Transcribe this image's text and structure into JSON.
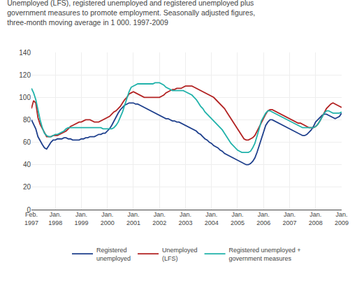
{
  "chart_data": {
    "type": "line",
    "title": "Unemployed (LFS), registered unemployed and registered unemployed plus\ngovernment measures to promote employment. Seasonally adjusted figures,\nthree-month moving average in 1 000. 1997-2009",
    "categories": [
      "Feb.\n1997",
      null,
      null,
      null,
      null,
      null,
      null,
      null,
      null,
      null,
      null,
      "Jan.\n1998",
      null,
      null,
      null,
      null,
      null,
      null,
      null,
      null,
      null,
      null,
      null,
      "Jan.\n1999",
      null,
      null,
      null,
      null,
      null,
      null,
      null,
      null,
      null,
      null,
      null,
      "Jan.\n2000",
      null,
      null,
      null,
      null,
      null,
      null,
      null,
      null,
      null,
      null,
      null,
      "Jan.\n2001",
      null,
      null,
      null,
      null,
      null,
      null,
      null,
      null,
      null,
      null,
      null,
      "Jan.\n2002",
      null,
      null,
      null,
      null,
      null,
      null,
      null,
      null,
      null,
      null,
      null,
      "Jan.\n2003",
      null,
      null,
      null,
      null,
      null,
      null,
      null,
      null,
      null,
      null,
      null,
      "Jan.\n2004",
      null,
      null,
      null,
      null,
      null,
      null,
      null,
      null,
      null,
      null,
      null,
      "Jan.\n2005",
      null,
      null,
      null,
      null,
      null,
      null,
      null,
      null,
      null,
      null,
      null,
      "Jan.\n2006",
      null,
      null,
      null,
      null,
      null,
      null,
      null,
      null,
      null,
      null,
      null,
      "Jan.\n2007",
      null,
      null,
      null,
      null,
      null,
      null,
      null,
      null,
      null,
      null,
      null,
      "Jan.\n2008",
      null,
      null,
      null,
      null,
      null,
      null,
      null,
      null,
      null,
      null,
      null,
      "Jan.\n2009"
    ],
    "series": [
      {
        "name": "Registered\nunemployed",
        "color": "#1e3f8c",
        "values": [
          80,
          76,
          72,
          65,
          61,
          58,
          55,
          54,
          57,
          60,
          62,
          62,
          63,
          63,
          63,
          64,
          64,
          63,
          63,
          62,
          62,
          62,
          62,
          63,
          63,
          64,
          64,
          65,
          65,
          65,
          66,
          67,
          67,
          68,
          68,
          70,
          72,
          75,
          79,
          82,
          86,
          89,
          91,
          93,
          94,
          95,
          95,
          95,
          94,
          94,
          93,
          92,
          91,
          90,
          89,
          88,
          87,
          86,
          85,
          84,
          83,
          82,
          81,
          81,
          80,
          79,
          79,
          78,
          78,
          77,
          76,
          75,
          74,
          73,
          72,
          71,
          70,
          68,
          67,
          65,
          63,
          62,
          60,
          59,
          57,
          56,
          55,
          53,
          52,
          50,
          49,
          48,
          47,
          46,
          45,
          44,
          43,
          42,
          41,
          40,
          40,
          41,
          43,
          46,
          51,
          57,
          63,
          70,
          75,
          78,
          80,
          80,
          79,
          78,
          77,
          76,
          75,
          74,
          73,
          72,
          71,
          70,
          69,
          68,
          67,
          66,
          66,
          67,
          69,
          71,
          74,
          78,
          80,
          82,
          84,
          85,
          85,
          84,
          83,
          82,
          81,
          82,
          83,
          86
        ]
      },
      {
        "name": "Unemployed\n(LFS)",
        "color": "#b22222",
        "values": [
          90,
          97,
          95,
          82,
          76,
          72,
          68,
          65,
          65,
          65,
          66,
          66,
          66,
          67,
          68,
          69,
          70,
          72,
          74,
          75,
          76,
          77,
          78,
          78,
          79,
          80,
          80,
          80,
          79,
          78,
          78,
          78,
          79,
          80,
          81,
          82,
          83,
          85,
          87,
          88,
          90,
          92,
          95,
          98,
          100,
          103,
          104,
          105,
          104,
          103,
          102,
          101,
          100,
          100,
          100,
          100,
          100,
          100,
          100,
          100,
          101,
          102,
          104,
          105,
          106,
          107,
          107,
          108,
          108,
          108,
          109,
          110,
          110,
          110,
          110,
          109,
          108,
          107,
          106,
          105,
          104,
          103,
          102,
          101,
          100,
          98,
          96,
          94,
          92,
          90,
          87,
          84,
          81,
          78,
          75,
          72,
          69,
          66,
          63,
          62,
          62,
          63,
          64,
          66,
          70,
          74,
          78,
          81,
          85,
          88,
          89,
          89,
          88,
          87,
          86,
          85,
          84,
          83,
          82,
          81,
          80,
          79,
          78,
          77,
          77,
          76,
          75,
          74,
          73,
          73,
          73,
          74,
          76,
          79,
          83,
          87,
          90,
          92,
          94,
          95,
          94,
          93,
          92,
          91
        ]
      },
      {
        "name": "Registered unemployed +\ngovernment measures",
        "color": "#20b2aa",
        "values": [
          108,
          104,
          98,
          88,
          80,
          73,
          68,
          66,
          65,
          65,
          66,
          67,
          67,
          68,
          69,
          70,
          72,
          73,
          73,
          73,
          73,
          73,
          73,
          73,
          73,
          73,
          73,
          73,
          73,
          73,
          73,
          73,
          73,
          72,
          72,
          72,
          72,
          72,
          73,
          75,
          78,
          82,
          87,
          93,
          99,
          105,
          109,
          110,
          111,
          112,
          112,
          112,
          112,
          112,
          112,
          112,
          112,
          113,
          113,
          113,
          112,
          111,
          109,
          108,
          107,
          106,
          106,
          106,
          106,
          106,
          106,
          105,
          104,
          103,
          102,
          100,
          98,
          95,
          92,
          90,
          87,
          85,
          83,
          81,
          79,
          77,
          75,
          73,
          71,
          68,
          65,
          62,
          59,
          57,
          55,
          53,
          52,
          51,
          51,
          51,
          51,
          52,
          55,
          59,
          65,
          72,
          79,
          83,
          86,
          88,
          88,
          87,
          86,
          85,
          84,
          83,
          82,
          81,
          80,
          79,
          78,
          77,
          76,
          75,
          74,
          73,
          73,
          73,
          73,
          73,
          73,
          74,
          76,
          79,
          83,
          86,
          88,
          88,
          87,
          86,
          86,
          86,
          86,
          87
        ]
      }
    ],
    "ylim": [
      0,
      140
    ],
    "yticks": [
      0,
      20,
      40,
      60,
      80,
      100,
      120,
      140
    ],
    "grid": true,
    "legend": "bottom"
  }
}
